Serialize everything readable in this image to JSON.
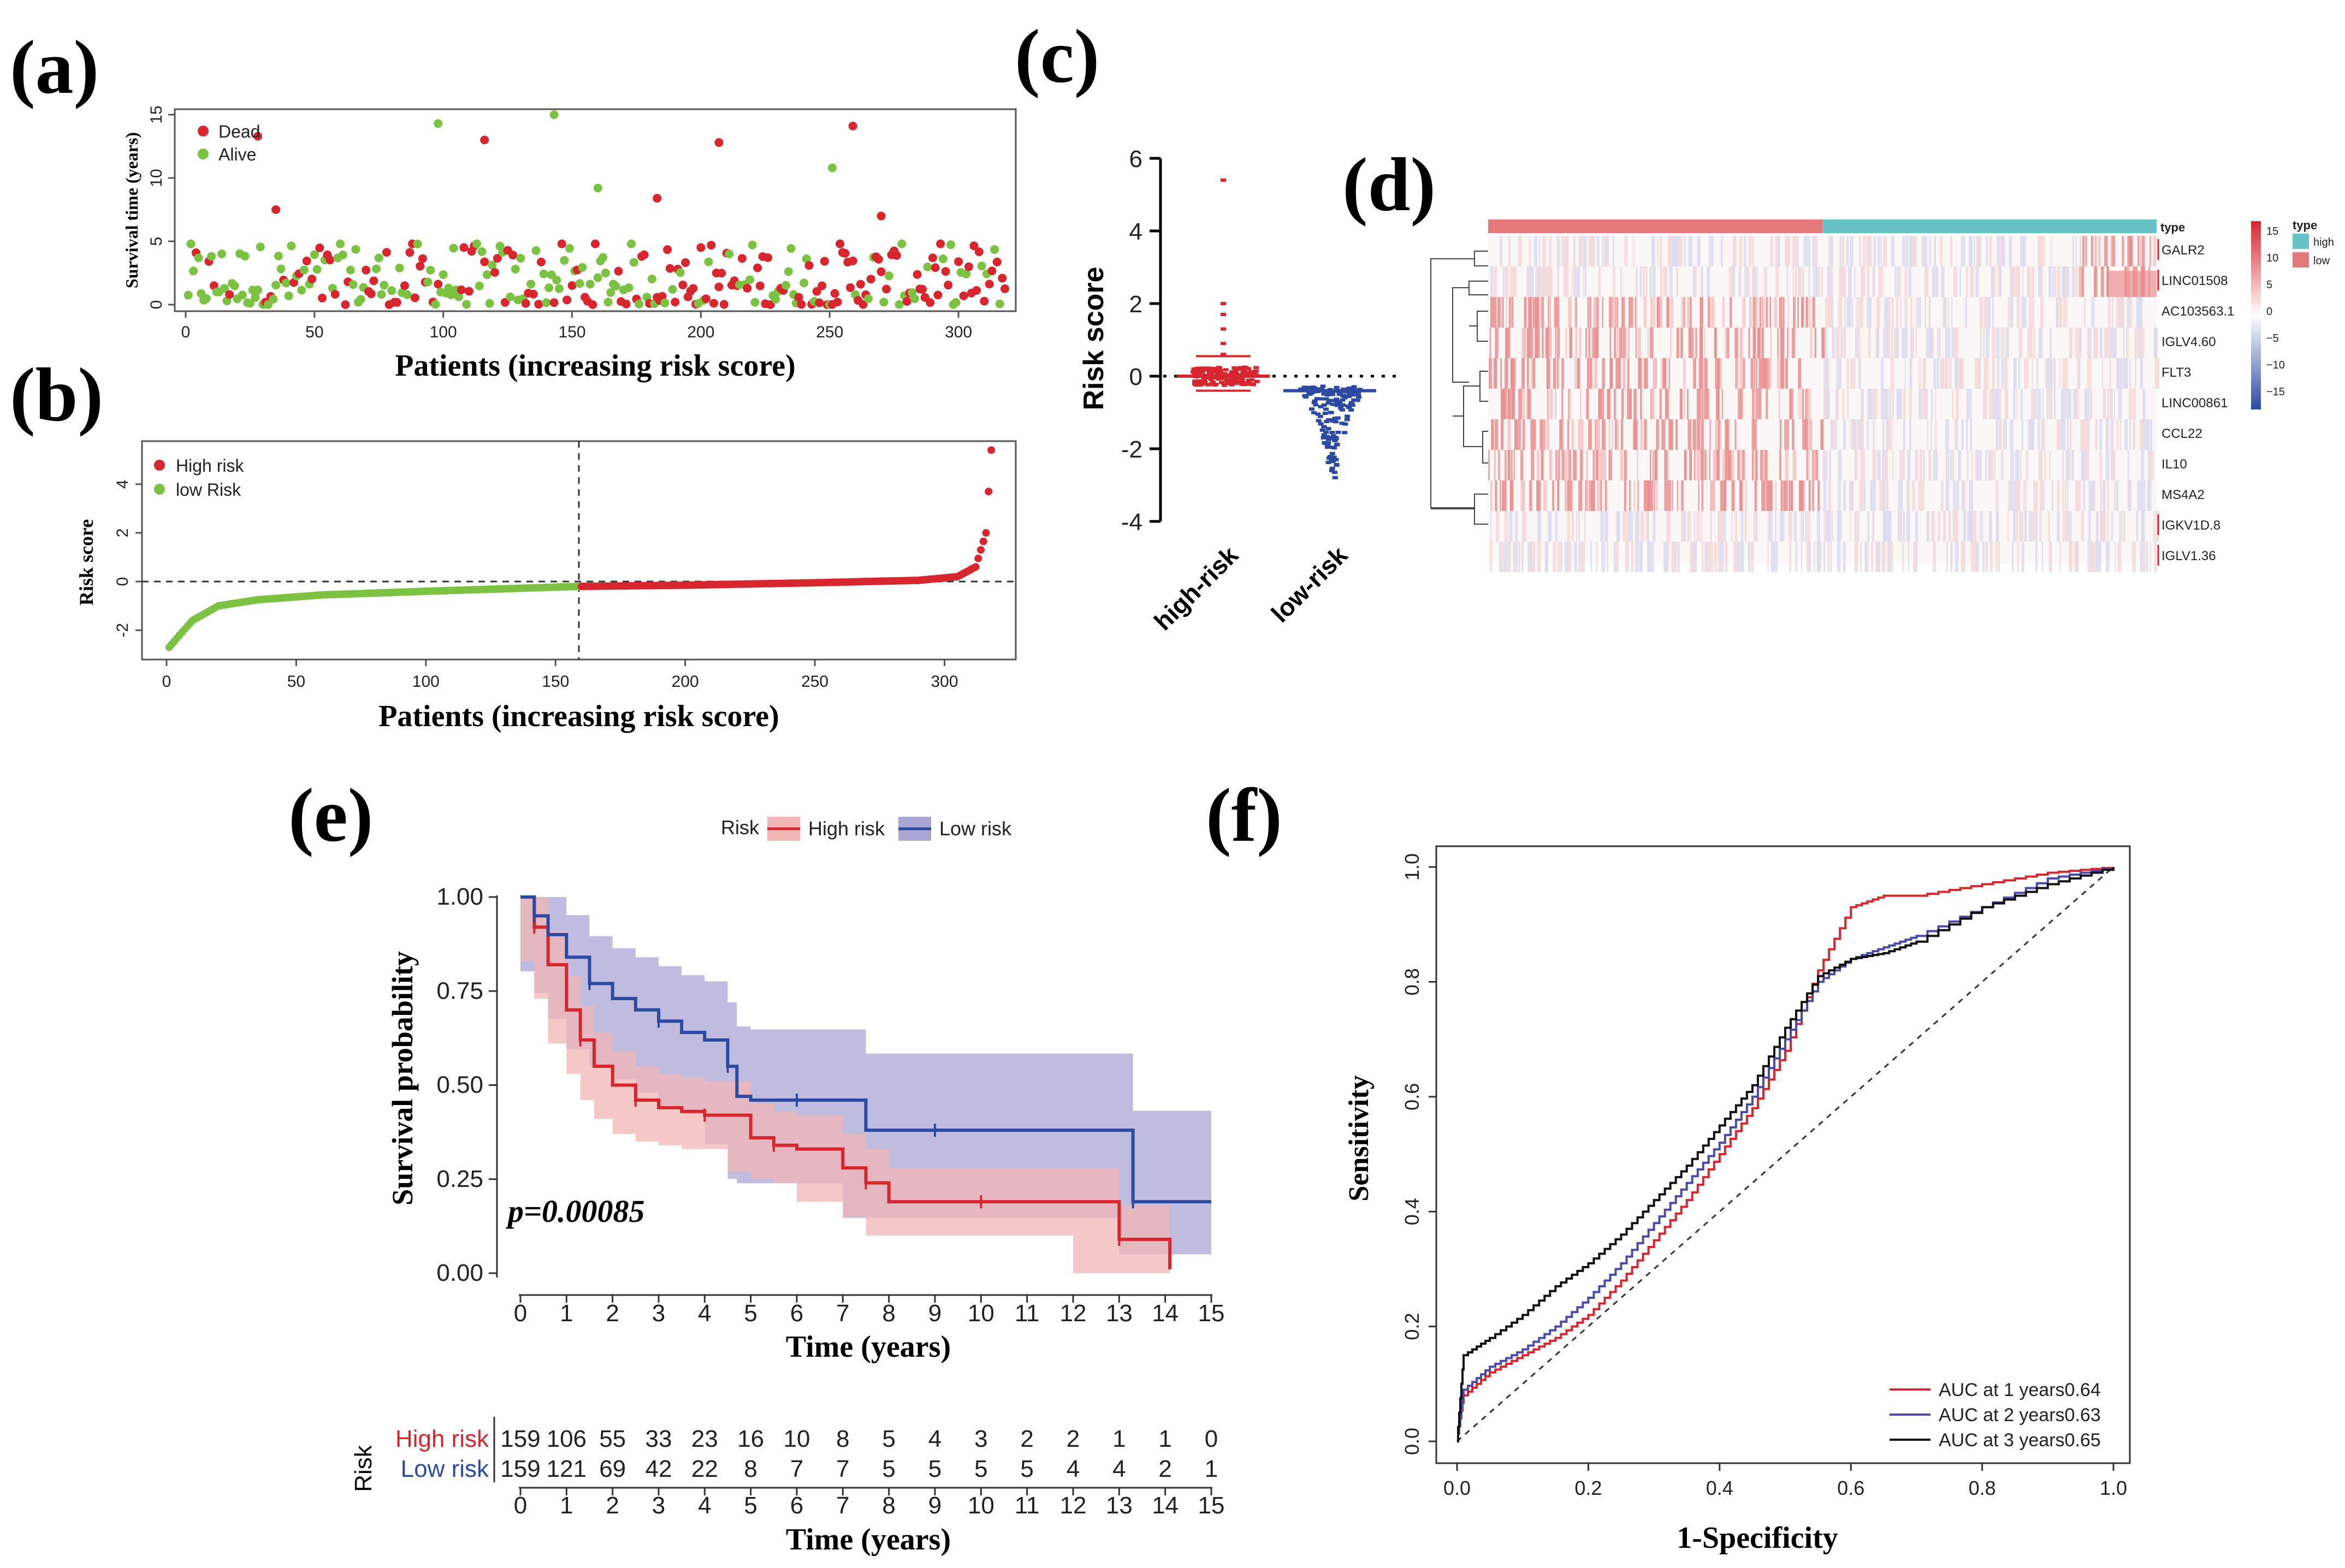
{
  "panels": {
    "a": "(a)",
    "b": "(b)",
    "c": "(c)",
    "d": "(d)",
    "e": "(e)",
    "f": "(f)"
  },
  "colors": {
    "high": "#d7262e",
    "low_green": "#7cc242",
    "low_blue": "#2d4aa3",
    "ci_high": "#f2b6b6",
    "ci_low": "#a9a6d6",
    "heat_high": "#e4797a",
    "heat_low": "#67c2c6"
  },
  "chart_data": [
    {
      "id": "a",
      "type": "scatter",
      "xlabel": "Patients (increasing risk score)",
      "ylabel": "Survival time (years)",
      "xlim": [
        0,
        318
      ],
      "ylim": [
        0,
        15
      ],
      "xticks": [
        "0",
        "50",
        "100",
        "150",
        "200",
        "250",
        "300"
      ],
      "yticks": [
        "0",
        "5",
        "10",
        "15"
      ],
      "legend": [
        "Dead",
        "Alive"
      ],
      "n_patients": 318,
      "notable_points": [
        {
          "x": 28,
          "y": 13.3,
          "status": "Dead"
        },
        {
          "x": 35,
          "y": 7.5,
          "status": "Dead"
        },
        {
          "x": 98,
          "y": 14.3,
          "status": "Alive"
        },
        {
          "x": 116,
          "y": 13.0,
          "status": "Dead"
        },
        {
          "x": 143,
          "y": 15.0,
          "status": "Alive"
        },
        {
          "x": 160,
          "y": 9.2,
          "status": "Alive"
        },
        {
          "x": 183,
          "y": 8.4,
          "status": "Dead"
        },
        {
          "x": 207,
          "y": 12.8,
          "status": "Dead"
        },
        {
          "x": 251,
          "y": 10.8,
          "status": "Alive"
        },
        {
          "x": 259,
          "y": 14.1,
          "status": "Dead"
        },
        {
          "x": 270,
          "y": 7.0,
          "status": "Dead"
        }
      ]
    },
    {
      "id": "b",
      "type": "scatter",
      "xlabel": "Patients (increasing risk score)",
      "ylabel": "Risk score",
      "xlim": [
        0,
        318
      ],
      "ylim": [
        -2.8,
        5.5
      ],
      "xticks": [
        "0",
        "50",
        "100",
        "150",
        "200",
        "250",
        "300"
      ],
      "yticks": [
        "-2",
        "0",
        "2",
        "4"
      ],
      "legend": [
        "High risk",
        "low Risk"
      ],
      "cutoff_index": 159,
      "curve_points": [
        [
          1,
          -2.7
        ],
        [
          5,
          -2.2
        ],
        [
          10,
          -1.6
        ],
        [
          20,
          -1.0
        ],
        [
          35,
          -0.75
        ],
        [
          60,
          -0.55
        ],
        [
          100,
          -0.4
        ],
        [
          159,
          -0.2
        ],
        [
          200,
          -0.15
        ],
        [
          250,
          -0.05
        ],
        [
          290,
          0.05
        ],
        [
          305,
          0.2
        ],
        [
          312,
          0.6
        ],
        [
          316,
          2.0
        ],
        [
          318,
          5.4
        ]
      ]
    },
    {
      "id": "c",
      "type": "scatter",
      "ylabel": "Risk score",
      "categories": [
        "high-risk",
        "low-risk"
      ],
      "ylim": [
        -4,
        6
      ],
      "yticks": [
        "-4",
        "-2",
        "0",
        "2",
        "4",
        "6"
      ],
      "high_median": 0.0,
      "low_median": -0.4,
      "high_range": [
        -0.4,
        5.4
      ],
      "low_range": [
        -2.7,
        -0.15
      ]
    },
    {
      "id": "d",
      "type": "heatmap",
      "genes": [
        "GALR2",
        "LINC01508",
        "AC103563.1",
        "IGLV4.60",
        "FLT3",
        "LINC00861",
        "CCL22",
        "IL10",
        "MS4A2",
        "IGKV1D.8",
        "IGLV1.36"
      ],
      "annotation_title": "type",
      "legend_title": "type",
      "legend_groups": [
        "high",
        "low"
      ],
      "scale_ticks": [
        "15",
        "10",
        "5",
        "0",
        "−5",
        "−10",
        "−15"
      ]
    },
    {
      "id": "e",
      "type": "line",
      "xlabel": "Time (years)",
      "ylabel": "Survival probability",
      "legend_title": "Risk",
      "legend": [
        "High risk",
        "Low risk"
      ],
      "xticks": [
        "0",
        "1",
        "2",
        "3",
        "4",
        "5",
        "6",
        "7",
        "8",
        "9",
        "10",
        "11",
        "12",
        "13",
        "14",
        "15"
      ],
      "yticks": [
        "0.00",
        "0.25",
        "0.50",
        "0.75",
        "1.00"
      ],
      "pvalue_label": "p=0.00085",
      "series": [
        {
          "name": "High risk",
          "x": [
            0,
            0.3,
            0.6,
            1,
            1.3,
            1.6,
            2,
            2.5,
            3,
            3.5,
            4,
            4.5,
            5,
            5.5,
            6,
            7,
            7.5,
            8,
            9,
            10,
            11,
            12,
            13,
            13.3,
            14.1
          ],
          "y": [
            1.0,
            0.92,
            0.82,
            0.7,
            0.62,
            0.55,
            0.5,
            0.46,
            0.44,
            0.43,
            0.42,
            0.42,
            0.36,
            0.34,
            0.33,
            0.28,
            0.24,
            0.19,
            0.19,
            0.19,
            0.19,
            0.19,
            0.09,
            0.09,
            0.01
          ]
        },
        {
          "name": "Low risk",
          "x": [
            0,
            0.3,
            0.6,
            1,
            1.5,
            2,
            2.5,
            3,
            3.5,
            4,
            4.5,
            4.7,
            5,
            6,
            7,
            7.5,
            9,
            12,
            13,
            13.3,
            15
          ],
          "y": [
            1.0,
            0.95,
            0.9,
            0.84,
            0.77,
            0.73,
            0.7,
            0.67,
            0.64,
            0.62,
            0.55,
            0.47,
            0.46,
            0.46,
            0.46,
            0.38,
            0.38,
            0.38,
            0.38,
            0.19,
            0.19
          ]
        }
      ],
      "risk_table": {
        "title": "Risk",
        "rows": [
          {
            "label": "High risk",
            "values": [
              "159",
              "106",
              "55",
              "33",
              "23",
              "16",
              "10",
              "8",
              "5",
              "4",
              "3",
              "2",
              "2",
              "1",
              "1",
              "0"
            ]
          },
          {
            "label": "Low risk",
            "values": [
              "159",
              "121",
              "69",
              "42",
              "22",
              "8",
              "7",
              "7",
              "5",
              "5",
              "5",
              "5",
              "4",
              "4",
              "2",
              "1"
            ]
          }
        ],
        "xlabel": "Time (years)"
      }
    },
    {
      "id": "f",
      "type": "line",
      "xlabel": "1-Specificity",
      "ylabel": "Sensitivity",
      "xlim": [
        0,
        1
      ],
      "ylim": [
        0,
        1
      ],
      "xticks": [
        "0.0",
        "0.2",
        "0.4",
        "0.6",
        "0.8",
        "1.0"
      ],
      "yticks": [
        "0.0",
        "0.2",
        "0.4",
        "0.6",
        "0.8",
        "1.0"
      ],
      "legend": [
        "AUC at 1 years0.64",
        "AUC at 2 years0.63",
        "AUC at 3 years0.65"
      ],
      "series": [
        {
          "name": "AUC at 1 years0.64",
          "x": [
            0,
            0.01,
            0.05,
            0.1,
            0.15,
            0.2,
            0.25,
            0.3,
            0.35,
            0.4,
            0.45,
            0.5,
            0.55,
            0.6,
            0.65,
            0.7,
            0.8,
            0.9,
            1.0
          ],
          "y": [
            0,
            0.08,
            0.12,
            0.15,
            0.18,
            0.22,
            0.28,
            0.35,
            0.42,
            0.5,
            0.58,
            0.68,
            0.82,
            0.93,
            0.95,
            0.95,
            0.97,
            0.99,
            1.0
          ]
        },
        {
          "name": "AUC at 2 years0.63",
          "x": [
            0,
            0.01,
            0.05,
            0.1,
            0.15,
            0.2,
            0.25,
            0.3,
            0.35,
            0.4,
            0.45,
            0.5,
            0.55,
            0.6,
            0.65,
            0.7,
            0.8,
            0.9,
            1.0
          ],
          "y": [
            0,
            0.09,
            0.13,
            0.16,
            0.2,
            0.25,
            0.31,
            0.38,
            0.45,
            0.52,
            0.6,
            0.7,
            0.8,
            0.84,
            0.86,
            0.88,
            0.93,
            0.98,
            1.0
          ]
        },
        {
          "name": "AUC at 3 years0.65",
          "x": [
            0,
            0.01,
            0.05,
            0.1,
            0.15,
            0.2,
            0.25,
            0.3,
            0.35,
            0.4,
            0.45,
            0.5,
            0.55,
            0.6,
            0.65,
            0.7,
            0.8,
            0.9,
            1.0
          ],
          "y": [
            0,
            0.15,
            0.18,
            0.22,
            0.27,
            0.31,
            0.36,
            0.42,
            0.48,
            0.55,
            0.62,
            0.72,
            0.81,
            0.84,
            0.85,
            0.87,
            0.93,
            0.97,
            1.0
          ]
        }
      ]
    }
  ]
}
